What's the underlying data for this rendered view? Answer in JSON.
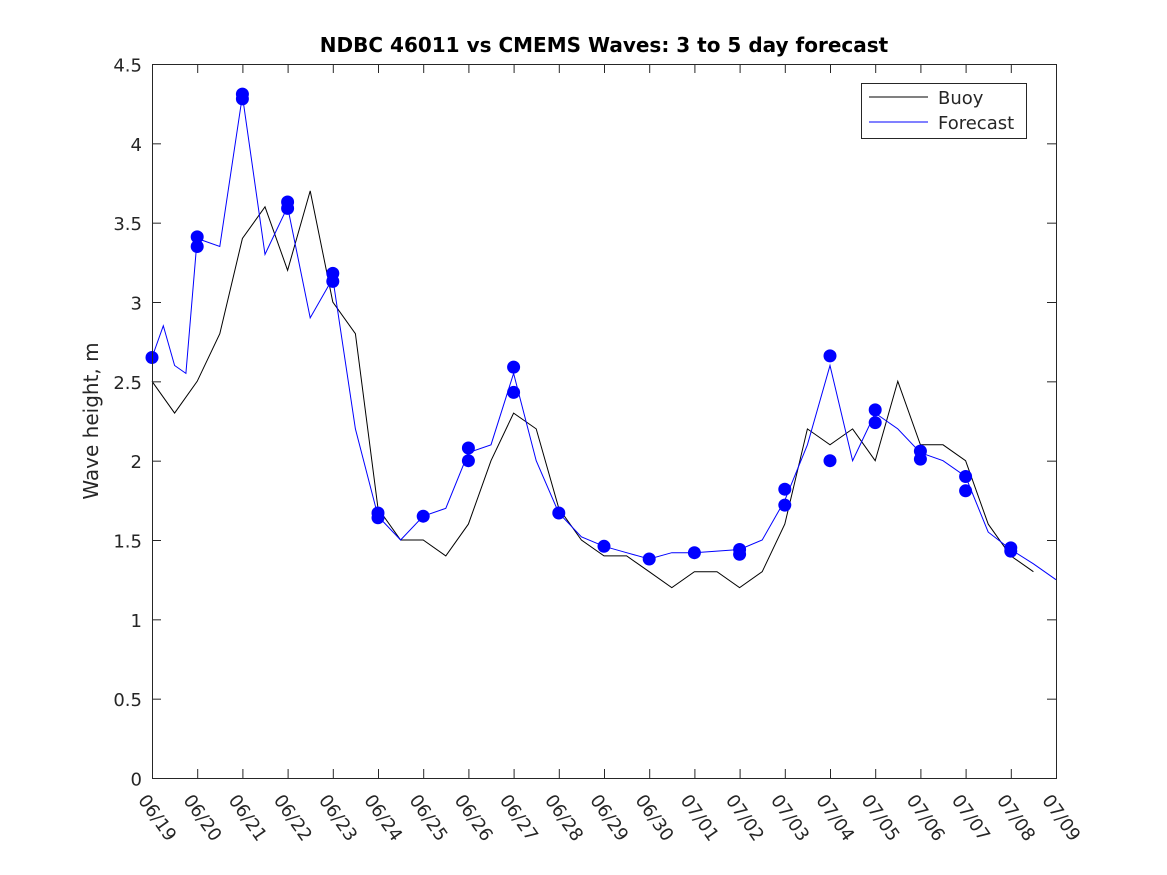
{
  "chart_data": {
    "type": "line",
    "title": "NDBC 46011 vs CMEMS Waves: 3 to 5 day forecast",
    "xlabel": "",
    "ylabel": "Wave height, m",
    "xlim": [
      "06/19",
      "07/09"
    ],
    "ylim": [
      0,
      4.5
    ],
    "yticks": [
      "0",
      "0.5",
      "1",
      "1.5",
      "2",
      "2.5",
      "3",
      "3.5",
      "4",
      "4.5"
    ],
    "xticks": [
      "06/19",
      "06/20",
      "06/21",
      "06/22",
      "06/23",
      "06/24",
      "06/25",
      "06/26",
      "06/27",
      "06/28",
      "06/29",
      "06/30",
      "07/01",
      "07/02",
      "07/03",
      "07/04",
      "07/05",
      "07/06",
      "07/07",
      "07/08",
      "07/09"
    ],
    "grid": false,
    "legend": {
      "position": "top-right",
      "entries": [
        "Buoy",
        "Forecast"
      ]
    },
    "colors": {
      "buoy": "#000000",
      "forecast": "#0000ff"
    },
    "series": [
      {
        "name": "Buoy",
        "x": [
          "06/19",
          "06/19 12:00",
          "06/20",
          "06/20 12:00",
          "06/21",
          "06/21 12:00",
          "06/22",
          "06/22 12:00",
          "06/23",
          "06/23 12:00",
          "06/24",
          "06/24 12:00",
          "06/25",
          "06/25 12:00",
          "06/26",
          "06/26 12:00",
          "06/27",
          "06/27 12:00",
          "06/28",
          "06/28 12:00",
          "06/29",
          "06/29 12:00",
          "06/30",
          "06/30 12:00",
          "07/01",
          "07/01 12:00",
          "07/02",
          "07/02 12:00",
          "07/03",
          "07/03 12:00",
          "07/04",
          "07/04 12:00",
          "07/05",
          "07/05 12:00",
          "07/06",
          "07/06 12:00",
          "07/07",
          "07/07 12:00",
          "07/08",
          "07/08 12:00"
        ],
        "y": [
          2.5,
          2.3,
          2.5,
          2.8,
          3.4,
          3.6,
          3.2,
          3.7,
          3.0,
          2.8,
          1.7,
          1.5,
          1.5,
          1.4,
          1.6,
          2.0,
          2.3,
          2.2,
          1.7,
          1.5,
          1.4,
          1.4,
          1.3,
          1.2,
          1.3,
          1.3,
          1.2,
          1.3,
          1.6,
          2.2,
          2.1,
          2.2,
          2.0,
          2.5,
          2.1,
          2.1,
          2.0,
          1.6,
          1.4,
          1.3
        ]
      },
      {
        "name": "Forecast",
        "x": [
          "06/19",
          "06/19 06:00",
          "06/19 12:00",
          "06/19 18:00",
          "06/20",
          "06/20 12:00",
          "06/21",
          "06/21 12:00",
          "06/22",
          "06/22 12:00",
          "06/23",
          "06/23 12:00",
          "06/24",
          "06/24 12:00",
          "06/25",
          "06/25 12:00",
          "06/26",
          "06/26 12:00",
          "06/27",
          "06/27 12:00",
          "06/28",
          "06/28 12:00",
          "06/29",
          "06/29 12:00",
          "06/30",
          "06/30 12:00",
          "07/01",
          "07/01 12:00",
          "07/02",
          "07/02 12:00",
          "07/03",
          "07/03 12:00",
          "07/04",
          "07/04 12:00",
          "07/05",
          "07/05 12:00",
          "07/06",
          "07/06 12:00",
          "07/07",
          "07/07 12:00",
          "07/08",
          "07/08 12:00",
          "07/09"
        ],
        "y": [
          2.65,
          2.85,
          2.6,
          2.55,
          3.4,
          3.35,
          4.3,
          3.3,
          3.6,
          2.9,
          3.15,
          2.2,
          1.65,
          1.5,
          1.65,
          1.7,
          2.05,
          2.1,
          2.55,
          2.0,
          1.67,
          1.52,
          1.46,
          1.42,
          1.38,
          1.42,
          1.42,
          1.43,
          1.44,
          1.5,
          1.75,
          2.1,
          2.6,
          2.0,
          2.3,
          2.2,
          2.05,
          2.0,
          1.9,
          1.55,
          1.44,
          1.35,
          1.25
        ]
      }
    ],
    "markers": {
      "series": "Forecast",
      "points": [
        {
          "x": "06/19",
          "y": 2.65
        },
        {
          "x": "06/20",
          "y": 3.41
        },
        {
          "x": "06/20",
          "y": 3.35
        },
        {
          "x": "06/21",
          "y": 4.31
        },
        {
          "x": "06/21",
          "y": 4.28
        },
        {
          "x": "06/22",
          "y": 3.63
        },
        {
          "x": "06/22",
          "y": 3.59
        },
        {
          "x": "06/23",
          "y": 3.18
        },
        {
          "x": "06/23",
          "y": 3.13
        },
        {
          "x": "06/24",
          "y": 1.67
        },
        {
          "x": "06/24",
          "y": 1.64
        },
        {
          "x": "06/25",
          "y": 1.65
        },
        {
          "x": "06/26",
          "y": 2.08
        },
        {
          "x": "06/26",
          "y": 2.0
        },
        {
          "x": "06/27",
          "y": 2.59
        },
        {
          "x": "06/27",
          "y": 2.43
        },
        {
          "x": "06/28",
          "y": 1.67
        },
        {
          "x": "06/29",
          "y": 1.46
        },
        {
          "x": "06/30",
          "y": 1.38
        },
        {
          "x": "07/01",
          "y": 1.42
        },
        {
          "x": "07/02",
          "y": 1.44
        },
        {
          "x": "07/02",
          "y": 1.41
        },
        {
          "x": "07/03",
          "y": 1.82
        },
        {
          "x": "07/03",
          "y": 1.72
        },
        {
          "x": "07/04",
          "y": 2.66
        },
        {
          "x": "07/04",
          "y": 2.0
        },
        {
          "x": "07/05",
          "y": 2.32
        },
        {
          "x": "07/05",
          "y": 2.24
        },
        {
          "x": "07/06",
          "y": 2.06
        },
        {
          "x": "07/06",
          "y": 2.01
        },
        {
          "x": "07/07",
          "y": 1.9
        },
        {
          "x": "07/07",
          "y": 1.81
        },
        {
          "x": "07/08",
          "y": 1.45
        },
        {
          "x": "07/08",
          "y": 1.43
        }
      ]
    }
  }
}
